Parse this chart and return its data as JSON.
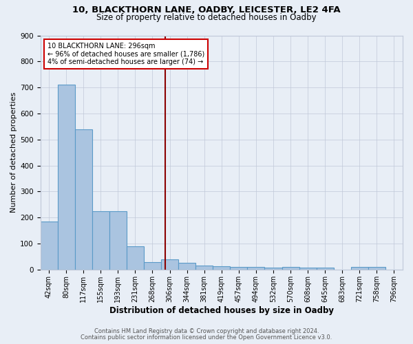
{
  "title1": "10, BLACKTHORN LANE, OADBY, LEICESTER, LE2 4FA",
  "title2": "Size of property relative to detached houses in Oadby",
  "xlabel": "Distribution of detached houses by size in Oadby",
  "ylabel": "Number of detached properties",
  "footnote1": "Contains HM Land Registry data © Crown copyright and database right 2024.",
  "footnote2": "Contains public sector information licensed under the Open Government Licence v3.0.",
  "bin_labels": [
    "42sqm",
    "80sqm",
    "117sqm",
    "155sqm",
    "193sqm",
    "231sqm",
    "268sqm",
    "306sqm",
    "344sqm",
    "381sqm",
    "419sqm",
    "457sqm",
    "494sqm",
    "532sqm",
    "570sqm",
    "608sqm",
    "645sqm",
    "683sqm",
    "721sqm",
    "758sqm",
    "796sqm"
  ],
  "bar_heights": [
    185,
    710,
    540,
    225,
    225,
    90,
    28,
    40,
    25,
    15,
    12,
    10,
    10,
    7,
    10,
    7,
    7,
    0,
    10,
    10,
    0
  ],
  "bar_color": "#aac4e0",
  "bar_edge_color": "#5a9ac8",
  "bg_color": "#e8eef6",
  "grid_color": "#c0c8d8",
  "property_line_color": "#8b0000",
  "annotation_box_color": "#ffffff",
  "annotation_box_edge": "#cc0000",
  "ylim": [
    0,
    900
  ],
  "yticks": [
    0,
    100,
    200,
    300,
    400,
    500,
    600,
    700,
    800,
    900
  ]
}
